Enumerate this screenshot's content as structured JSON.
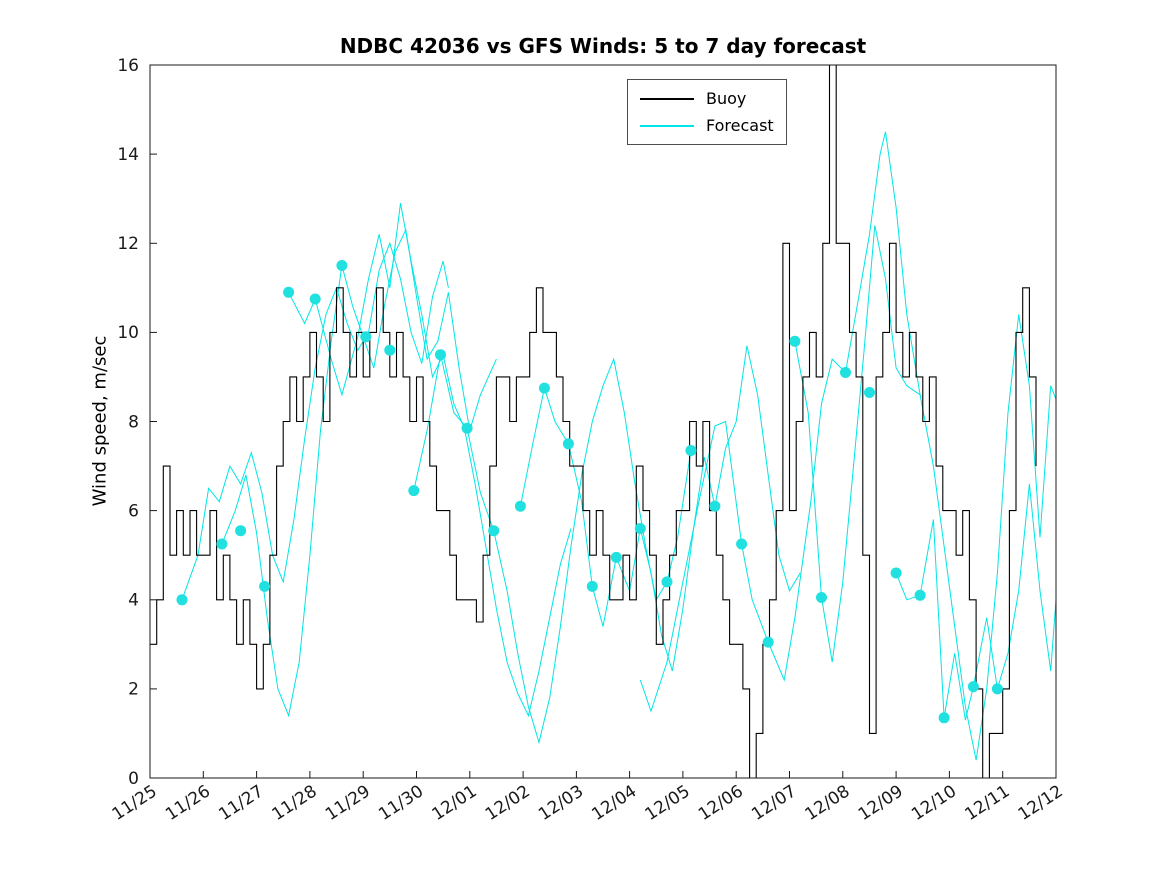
{
  "chart_data": {
    "type": "line",
    "title": "NDBC 42036 vs GFS Winds: 5 to 7 day forecast",
    "xlabel": "",
    "ylabel": "Wind speed, m/sec",
    "ylim": [
      0,
      16
    ],
    "y_ticks": [
      0,
      2,
      4,
      6,
      8,
      10,
      12,
      14,
      16
    ],
    "x_domain": [
      0,
      17
    ],
    "x_tick_labels": [
      "11/25",
      "11/26",
      "11/27",
      "11/28",
      "11/29",
      "11/30",
      "12/01",
      "12/02",
      "12/03",
      "12/04",
      "12/05",
      "12/06",
      "12/07",
      "12/08",
      "12/09",
      "12/10",
      "12/11",
      "12/12"
    ],
    "grid": false,
    "legend": {
      "location": "north",
      "entries": [
        {
          "label": "Buoy",
          "color": "#000000"
        },
        {
          "label": "Forecast",
          "color": "#00e5e5"
        }
      ]
    },
    "colors": {
      "buoy": "#000000",
      "forecast": "#00e5e5",
      "marker": "#20e0e0",
      "axis": "#1a1a1a"
    },
    "buoy": {
      "name": "Buoy",
      "style": "stairs",
      "x_start_day": 0,
      "x_step_day": 0.125,
      "values": [
        3,
        4,
        7,
        5,
        6,
        5,
        6,
        5,
        5,
        6,
        4,
        5,
        4,
        3,
        4,
        3,
        2,
        3,
        5,
        7,
        8,
        9,
        8,
        9,
        10,
        9,
        8,
        10,
        11,
        10,
        9,
        10,
        9,
        10,
        11,
        10,
        9,
        10,
        9,
        8,
        9,
        8,
        7,
        6,
        6,
        5,
        4,
        4,
        4,
        3.5,
        5,
        7,
        9,
        9,
        8,
        9,
        9,
        10,
        11,
        10,
        10,
        9,
        8,
        7,
        7,
        6,
        5,
        6,
        5,
        4,
        4,
        5,
        4,
        7,
        6,
        5,
        3,
        4,
        5,
        6,
        6,
        8,
        7,
        8,
        6,
        5,
        4,
        3,
        3,
        2,
        0,
        1,
        3,
        4,
        6,
        12,
        6,
        8,
        9,
        10,
        9,
        12,
        16,
        12,
        12,
        10,
        9,
        5,
        1,
        9,
        10,
        12,
        10,
        9,
        10,
        9,
        8,
        9,
        7,
        6,
        6,
        5,
        6,
        4,
        2,
        0,
        1,
        1,
        2,
        6,
        10,
        11,
        9,
        7
      ]
    },
    "forecast_lines": [
      {
        "points": [
          [
            0.6,
            4.0
          ],
          [
            0.9,
            5.0
          ],
          [
            1.1,
            6.5
          ],
          [
            1.3,
            6.2
          ],
          [
            1.5,
            7.0
          ],
          [
            1.7,
            6.6
          ],
          [
            1.9,
            7.3
          ],
          [
            2.1,
            6.4
          ],
          [
            2.3,
            5.0
          ],
          [
            2.5,
            4.4
          ],
          [
            2.7,
            5.8
          ],
          [
            2.9,
            7.6
          ],
          [
            3.1,
            9.2
          ],
          [
            3.3,
            10.4
          ],
          [
            3.5,
            11.0
          ],
          [
            3.7,
            10.2
          ],
          [
            3.9,
            9.6
          ],
          [
            4.1,
            10.0
          ],
          [
            4.3,
            11.4
          ],
          [
            4.5,
            12.0
          ],
          [
            4.7,
            11.2
          ],
          [
            4.9,
            10.0
          ],
          [
            5.1,
            9.3
          ],
          [
            5.3,
            10.8
          ],
          [
            5.5,
            11.6
          ],
          [
            5.6,
            11.0
          ]
        ]
      },
      {
        "points": [
          [
            1.35,
            5.25
          ],
          [
            1.6,
            6.0
          ],
          [
            1.8,
            6.8
          ],
          [
            2.0,
            5.5
          ],
          [
            2.2,
            3.6
          ],
          [
            2.4,
            2.0
          ],
          [
            2.6,
            1.4
          ],
          [
            2.8,
            2.6
          ],
          [
            3.0,
            5.0
          ],
          [
            3.2,
            7.8
          ],
          [
            3.4,
            9.8
          ],
          [
            3.6,
            11.5
          ],
          [
            3.8,
            10.6
          ],
          [
            4.0,
            9.9
          ],
          [
            4.2,
            9.2
          ],
          [
            4.4,
            10.6
          ],
          [
            4.6,
            11.8
          ],
          [
            4.8,
            12.3
          ],
          [
            5.0,
            10.8
          ],
          [
            5.2,
            9.4
          ],
          [
            5.4,
            9.8
          ],
          [
            5.6,
            10.9
          ],
          [
            5.8,
            9.2
          ],
          [
            6.0,
            7.8
          ],
          [
            6.2,
            8.6
          ],
          [
            6.5,
            9.4
          ]
        ]
      },
      {
        "points": [
          [
            2.6,
            10.9
          ],
          [
            2.9,
            10.2
          ],
          [
            3.1,
            10.75
          ],
          [
            3.4,
            9.4
          ],
          [
            3.6,
            8.6
          ],
          [
            3.9,
            9.9
          ],
          [
            4.1,
            11.2
          ],
          [
            4.3,
            12.2
          ],
          [
            4.5,
            11.0
          ],
          [
            4.7,
            12.9
          ],
          [
            4.9,
            11.6
          ],
          [
            5.1,
            10.4
          ],
          [
            5.3,
            9.0
          ],
          [
            5.5,
            9.5
          ],
          [
            5.7,
            8.4
          ],
          [
            5.9,
            7.85
          ],
          [
            6.1,
            6.6
          ],
          [
            6.3,
            5.2
          ],
          [
            6.5,
            3.8
          ],
          [
            6.7,
            2.6
          ],
          [
            6.9,
            1.9
          ],
          [
            7.1,
            1.4
          ],
          [
            7.3,
            2.4
          ],
          [
            7.5,
            3.6
          ],
          [
            7.7,
            4.8
          ],
          [
            7.9,
            5.6
          ]
        ]
      },
      {
        "points": [
          [
            4.95,
            6.45
          ],
          [
            5.2,
            7.8
          ],
          [
            5.45,
            9.5
          ],
          [
            5.7,
            8.2
          ],
          [
            5.95,
            7.85
          ],
          [
            6.2,
            6.4
          ],
          [
            6.45,
            5.55
          ],
          [
            6.7,
            4.2
          ],
          [
            6.9,
            2.8
          ],
          [
            7.1,
            1.6
          ],
          [
            7.3,
            0.8
          ],
          [
            7.5,
            1.8
          ],
          [
            7.7,
            3.4
          ],
          [
            7.9,
            5.2
          ],
          [
            8.1,
            6.8
          ],
          [
            8.3,
            8.0
          ],
          [
            8.5,
            8.8
          ],
          [
            8.7,
            9.4
          ],
          [
            8.9,
            8.2
          ],
          [
            9.1,
            6.6
          ],
          [
            9.3,
            5.2
          ],
          [
            9.5,
            4.0
          ],
          [
            9.7,
            4.4
          ],
          [
            9.9,
            5.4
          ],
          [
            10.15,
            7.35
          ]
        ]
      },
      {
        "points": [
          [
            6.95,
            6.1
          ],
          [
            7.2,
            7.6
          ],
          [
            7.4,
            8.75
          ],
          [
            7.6,
            8.0
          ],
          [
            7.85,
            7.5
          ],
          [
            8.1,
            6.2
          ],
          [
            8.3,
            4.3
          ],
          [
            8.5,
            3.4
          ],
          [
            8.75,
            4.95
          ],
          [
            9.0,
            4.2
          ],
          [
            9.2,
            5.6
          ],
          [
            9.4,
            4.6
          ],
          [
            9.6,
            3.2
          ],
          [
            9.8,
            2.4
          ],
          [
            10.0,
            3.8
          ],
          [
            10.2,
            5.6
          ],
          [
            10.4,
            7.2
          ],
          [
            10.6,
            6.1
          ],
          [
            10.8,
            7.4
          ],
          [
            11.0,
            8.0
          ],
          [
            11.2,
            9.7
          ],
          [
            11.4,
            8.6
          ],
          [
            11.6,
            6.8
          ],
          [
            11.8,
            5.0
          ],
          [
            12.0,
            4.2
          ],
          [
            12.2,
            4.6
          ]
        ]
      },
      {
        "points": [
          [
            9.2,
            2.2
          ],
          [
            9.4,
            1.5
          ],
          [
            9.7,
            2.6
          ],
          [
            10.0,
            4.4
          ],
          [
            10.3,
            6.2
          ],
          [
            10.6,
            7.9
          ],
          [
            10.8,
            8.0
          ],
          [
            11.1,
            5.25
          ],
          [
            11.3,
            4.0
          ],
          [
            11.6,
            3.05
          ],
          [
            11.9,
            2.2
          ],
          [
            12.1,
            3.6
          ],
          [
            12.4,
            6.2
          ],
          [
            12.6,
            8.4
          ],
          [
            12.8,
            9.4
          ],
          [
            13.05,
            9.1
          ],
          [
            13.3,
            10.8
          ],
          [
            13.5,
            12.2
          ],
          [
            13.7,
            14.0
          ],
          [
            13.8,
            14.5
          ],
          [
            14.0,
            12.8
          ],
          [
            14.2,
            10.4
          ],
          [
            14.45,
            8.6
          ]
        ]
      },
      {
        "points": [
          [
            12.1,
            9.8
          ],
          [
            12.35,
            8.2
          ],
          [
            12.6,
            4.05
          ],
          [
            12.8,
            2.6
          ],
          [
            13.0,
            4.4
          ],
          [
            13.2,
            7.0
          ],
          [
            13.4,
            9.6
          ],
          [
            13.6,
            12.4
          ],
          [
            13.8,
            11.2
          ],
          [
            14.0,
            9.2
          ],
          [
            14.2,
            8.8
          ],
          [
            14.45,
            8.6
          ],
          [
            14.7,
            7.0
          ],
          [
            14.9,
            5.2
          ],
          [
            15.1,
            3.4
          ],
          [
            15.3,
            1.6
          ],
          [
            15.5,
            0.4
          ],
          [
            15.7,
            2.0
          ],
          [
            15.9,
            4.6
          ],
          [
            16.1,
            8.2
          ],
          [
            16.3,
            10.4
          ],
          [
            16.5,
            8.8
          ],
          [
            16.7,
            5.4
          ],
          [
            16.9,
            8.8
          ],
          [
            17.0,
            8.5
          ]
        ]
      },
      {
        "points": [
          [
            14.0,
            4.6
          ],
          [
            14.2,
            4.0
          ],
          [
            14.45,
            4.1
          ],
          [
            14.7,
            5.8
          ],
          [
            14.9,
            1.35
          ],
          [
            15.1,
            2.8
          ],
          [
            15.3,
            1.3
          ],
          [
            15.45,
            2.05
          ],
          [
            15.7,
            3.6
          ],
          [
            15.9,
            2.0
          ],
          [
            16.1,
            2.8
          ],
          [
            16.3,
            4.2
          ],
          [
            16.5,
            6.6
          ],
          [
            16.7,
            4.2
          ],
          [
            16.9,
            2.4
          ],
          [
            17.0,
            4.0
          ]
        ]
      }
    ],
    "forecast_markers": {
      "points": [
        [
          0.6,
          4.0
        ],
        [
          1.35,
          5.25
        ],
        [
          1.7,
          5.55
        ],
        [
          2.15,
          4.3
        ],
        [
          2.6,
          10.9
        ],
        [
          3.1,
          10.75
        ],
        [
          3.6,
          11.5
        ],
        [
          4.05,
          9.9
        ],
        [
          4.5,
          9.6
        ],
        [
          4.95,
          6.45
        ],
        [
          5.45,
          9.5
        ],
        [
          5.95,
          7.85
        ],
        [
          6.45,
          5.55
        ],
        [
          6.95,
          6.1
        ],
        [
          7.4,
          8.75
        ],
        [
          7.85,
          7.5
        ],
        [
          8.3,
          4.3
        ],
        [
          8.75,
          4.95
        ],
        [
          9.2,
          5.6
        ],
        [
          9.7,
          4.4
        ],
        [
          10.15,
          7.35
        ],
        [
          10.6,
          6.1
        ],
        [
          11.1,
          5.25
        ],
        [
          11.6,
          3.05
        ],
        [
          12.1,
          9.8
        ],
        [
          12.6,
          4.05
        ],
        [
          13.05,
          9.1
        ],
        [
          13.5,
          8.65
        ],
        [
          14.0,
          4.6
        ],
        [
          14.45,
          4.1
        ],
        [
          14.9,
          1.35
        ],
        [
          15.45,
          2.05
        ],
        [
          15.9,
          2.0
        ]
      ]
    }
  }
}
